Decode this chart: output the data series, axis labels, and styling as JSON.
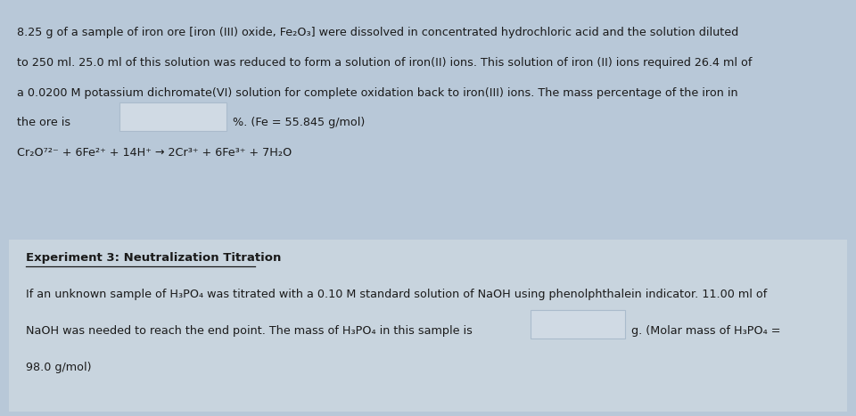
{
  "background_color": "#b8c8d8",
  "top_section_bg": "#b8c8d8",
  "bottom_section_bg": "#c8d4de",
  "line1": "8.25 g of a sample of iron ore [iron (III) oxide, Fe₂O₃] were dissolved in concentrated hydrochloric acid and the solution diluted",
  "line2": "to 250 ml. 25.0 ml of this solution was reduced to form a solution of iron(II) ions. This solution of iron (II) ions required 26.4 ml of",
  "line3": "a 0.0200 M potassium dichromate(VI) solution for complete oxidation back to iron(III) ions. The mass percentage of the iron in",
  "line4_left": "the ore is",
  "line4_right": "%. (Fe = 55.845 g/mol)",
  "line5": "Cr₂O⁷²⁻ + 6Fe²⁺ + 14H⁺ → 2Cr³⁺ + 6Fe³⁺ + 7H₂O",
  "exp3_title": "Experiment 3: Neutralization Titration",
  "exp3_line1": "If an unknown sample of H₃PO₄ was titrated with a 0.10 M standard solution of NaOH using phenolphthalein indicator. 11.00 ml of",
  "exp3_line2_left": "NaOH was needed to reach the end point. The mass of H₃PO₄ in this sample is",
  "exp3_line2_right": "g. (Molar mass of H₃PO₄ =",
  "exp3_line3": "98.0 g/mol)",
  "text_color": "#1a1a1a",
  "box_color": "#d0dae4",
  "box_edge_color": "#aabbcc",
  "font_size": 9.2,
  "title_font_size": 9.5
}
